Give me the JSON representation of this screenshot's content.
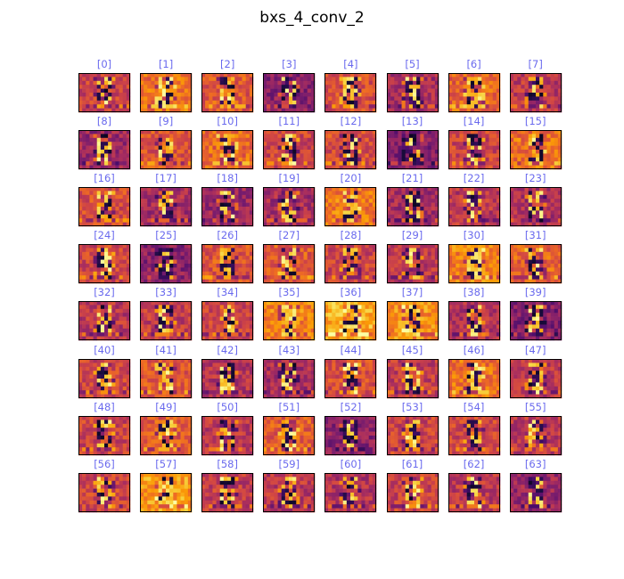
{
  "chart_data": {
    "type": "heatmap",
    "title": "bxs_4_conv_2",
    "panel_labels": [
      "[0]",
      "[1]",
      "[2]",
      "[3]",
      "[4]",
      "[5]",
      "[6]",
      "[7]",
      "[8]",
      "[9]",
      "[10]",
      "[11]",
      "[12]",
      "[13]",
      "[14]",
      "[15]",
      "[16]",
      "[17]",
      "[18]",
      "[19]",
      "[20]",
      "[21]",
      "[22]",
      "[23]",
      "[24]",
      "[25]",
      "[26]",
      "[27]",
      "[28]",
      "[29]",
      "[30]",
      "[31]",
      "[32]",
      "[33]",
      "[34]",
      "[35]",
      "[36]",
      "[37]",
      "[38]",
      "[39]",
      "[40]",
      "[41]",
      "[42]",
      "[43]",
      "[44]",
      "[45]",
      "[46]",
      "[47]",
      "[48]",
      "[49]",
      "[50]",
      "[51]",
      "[52]",
      "[53]",
      "[54]",
      "[55]",
      "[56]",
      "[57]",
      "[58]",
      "[59]",
      "[60]",
      "[61]",
      "[62]",
      "[63]"
    ],
    "grid": {
      "rows": 8,
      "cols": 8
    },
    "feature_map": {
      "rows": 10,
      "cols": 14
    },
    "colormap": "inferno",
    "colormap_stops": [
      "#000004",
      "#1b0c41",
      "#4a0c6b",
      "#781c6d",
      "#a52c60",
      "#cf4446",
      "#ed6925",
      "#fb9b06",
      "#f7d13d",
      "#fcffa4"
    ],
    "label_color": "#6a6aee",
    "axes_visible": false,
    "panel_base_levels": [
      0.55,
      0.68,
      0.62,
      0.38,
      0.58,
      0.45,
      0.65,
      0.5,
      0.42,
      0.6,
      0.66,
      0.55,
      0.58,
      0.35,
      0.55,
      0.68,
      0.58,
      0.45,
      0.42,
      0.45,
      0.7,
      0.44,
      0.5,
      0.46,
      0.55,
      0.38,
      0.6,
      0.62,
      0.55,
      0.5,
      0.72,
      0.64,
      0.5,
      0.52,
      0.55,
      0.72,
      0.82,
      0.75,
      0.48,
      0.35,
      0.55,
      0.62,
      0.48,
      0.45,
      0.58,
      0.52,
      0.68,
      0.5,
      0.55,
      0.62,
      0.5,
      0.62,
      0.38,
      0.55,
      0.55,
      0.5,
      0.55,
      0.78,
      0.52,
      0.5,
      0.48,
      0.55,
      0.5,
      0.42
    ]
  }
}
